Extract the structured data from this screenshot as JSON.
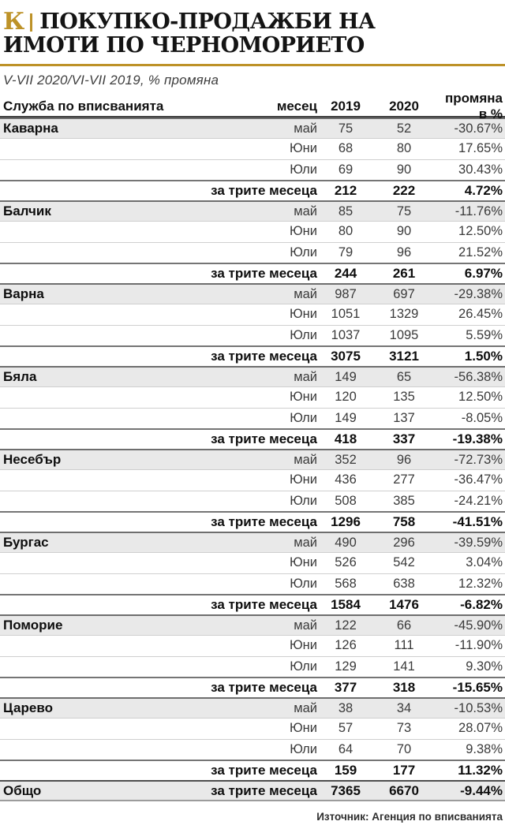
{
  "accent_color": "#bd9228",
  "brand": {
    "logo_letter": "К"
  },
  "chart_data": {
    "type": "table",
    "title": "ПОКУПКО-ПРОДАЖБИ НА ИМОТИ ПО ЧЕРНОМОРИЕТО",
    "title_lines": [
      "ПОКУПКО-ПРОДАЖБИ НА",
      "ИМОТИ ПО ЧЕРНОМОРИЕТО"
    ],
    "subtitle": "V-VII 2020/VI-VII 2019, % промяна",
    "columns": {
      "office": "Служба по вписванията",
      "month": "месец",
      "y2019": "2019",
      "y2020": "2020",
      "change": "промяна в %"
    },
    "total_row_label": "за трите месеца",
    "sections": [
      {
        "office": "Каварна",
        "rows": [
          {
            "month": "май",
            "y2019": 75,
            "y2020": 52,
            "change": "-30.67%"
          },
          {
            "month": "Юни",
            "y2019": 68,
            "y2020": 80,
            "change": "17.65%"
          },
          {
            "month": "Юли",
            "y2019": 69,
            "y2020": 90,
            "change": "30.43%"
          }
        ],
        "total": {
          "y2019": 212,
          "y2020": 222,
          "change": "4.72%"
        }
      },
      {
        "office": "Балчик",
        "rows": [
          {
            "month": "май",
            "y2019": 85,
            "y2020": 75,
            "change": "-11.76%"
          },
          {
            "month": "Юни",
            "y2019": 80,
            "y2020": 90,
            "change": "12.50%"
          },
          {
            "month": "Юли",
            "y2019": 79,
            "y2020": 96,
            "change": "21.52%"
          }
        ],
        "total": {
          "y2019": 244,
          "y2020": 261,
          "change": "6.97%"
        }
      },
      {
        "office": "Варна",
        "rows": [
          {
            "month": "май",
            "y2019": 987,
            "y2020": 697,
            "change": "-29.38%"
          },
          {
            "month": "Юни",
            "y2019": 1051,
            "y2020": 1329,
            "change": "26.45%"
          },
          {
            "month": "Юли",
            "y2019": 1037,
            "y2020": 1095,
            "change": "5.59%"
          }
        ],
        "total": {
          "y2019": 3075,
          "y2020": 3121,
          "change": "1.50%"
        }
      },
      {
        "office": "Бяла",
        "rows": [
          {
            "month": "май",
            "y2019": 149,
            "y2020": 65,
            "change": "-56.38%"
          },
          {
            "month": "Юни",
            "y2019": 120,
            "y2020": 135,
            "change": "12.50%"
          },
          {
            "month": "Юли",
            "y2019": 149,
            "y2020": 137,
            "change": "-8.05%"
          }
        ],
        "total": {
          "y2019": 418,
          "y2020": 337,
          "change": "-19.38%"
        }
      },
      {
        "office": "Несебър",
        "rows": [
          {
            "month": "май",
            "y2019": 352,
            "y2020": 96,
            "change": "-72.73%"
          },
          {
            "month": "Юни",
            "y2019": 436,
            "y2020": 277,
            "change": "-36.47%"
          },
          {
            "month": "Юли",
            "y2019": 508,
            "y2020": 385,
            "change": "-24.21%"
          }
        ],
        "total": {
          "y2019": 1296,
          "y2020": 758,
          "change": "-41.51%"
        }
      },
      {
        "office": "Бургас",
        "rows": [
          {
            "month": "май",
            "y2019": 490,
            "y2020": 296,
            "change": "-39.59%"
          },
          {
            "month": "Юни",
            "y2019": 526,
            "y2020": 542,
            "change": "3.04%"
          },
          {
            "month": "Юли",
            "y2019": 568,
            "y2020": 638,
            "change": "12.32%"
          }
        ],
        "total": {
          "y2019": 1584,
          "y2020": 1476,
          "change": "-6.82%"
        }
      },
      {
        "office": "Поморие",
        "rows": [
          {
            "month": "май",
            "y2019": 122,
            "y2020": 66,
            "change": "-45.90%"
          },
          {
            "month": "Юни",
            "y2019": 126,
            "y2020": 111,
            "change": "-11.90%"
          },
          {
            "month": "Юли",
            "y2019": 129,
            "y2020": 141,
            "change": "9.30%"
          }
        ],
        "total": {
          "y2019": 377,
          "y2020": 318,
          "change": "-15.65%"
        }
      },
      {
        "office": "Царево",
        "rows": [
          {
            "month": "май",
            "y2019": 38,
            "y2020": 34,
            "change": "-10.53%"
          },
          {
            "month": "Юни",
            "y2019": 57,
            "y2020": 73,
            "change": "28.07%"
          },
          {
            "month": "Юли",
            "y2019": 64,
            "y2020": 70,
            "change": "9.38%"
          }
        ],
        "total": {
          "y2019": 159,
          "y2020": 177,
          "change": "11.32%"
        }
      }
    ],
    "grand_total": {
      "office": "Общо",
      "label": "за трите месеца",
      "y2019": 7365,
      "y2020": 6670,
      "change": "-9.44%"
    },
    "source": "Източник: Агенция по вписванията",
    "layout": {
      "grid": "horizontal-rules-only",
      "legend": "none"
    }
  }
}
